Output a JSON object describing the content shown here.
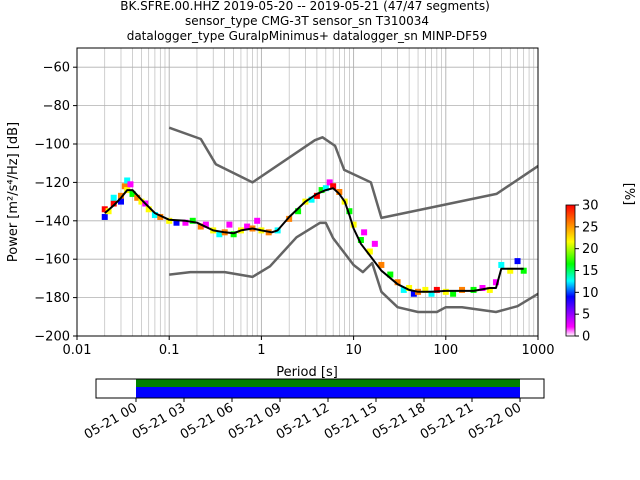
{
  "title_lines": [
    "BK.SFRE.00.HHZ   2019-05-20 -- 2019-05-21  (47/47 segments)",
    "sensor_type CMG-3T sensor_sn T310034",
    "datalogger_type GuralpMinimus+ datalogger_sn MINP-DF59"
  ],
  "colors": {
    "model": "#646464",
    "mode": "#000000",
    "grid": "#b0b0b0",
    "coverage_green": "#008000",
    "coverage_blue": "#0000ff"
  },
  "chart_data": [
    {
      "type": "heatmap",
      "title": "BK.SFRE.00.HHZ   2019-05-20 -- 2019-05-21  (47/47 segments)",
      "xlabel": "Period [s]",
      "ylabel": "Power [m²/s⁴/Hz] [dB]",
      "xscale": "log",
      "xlim": [
        0.01,
        1000
      ],
      "ylim": [
        -200,
        -50
      ],
      "x_tick_labels": [
        "0.01",
        "0.1",
        "1",
        "10",
        "100",
        "1000"
      ],
      "y_ticks": [
        -60,
        -80,
        -100,
        -120,
        -140,
        -160,
        -180,
        -200
      ],
      "grid": true,
      "colorbar": {
        "label": "[%]",
        "ticks": [
          0,
          5,
          10,
          15,
          20,
          25,
          30
        ],
        "range": [
          0,
          30
        ],
        "colormap": [
          "#ffffff",
          "#ff00ff",
          "#0000ff",
          "#00ffff",
          "#00ff00",
          "#ffff00",
          "#ff8000",
          "#ff0000"
        ]
      },
      "series": [
        {
          "kind": "noise_model_high",
          "x": [
            0.1,
            0.22,
            0.32,
            0.8,
            3.8,
            4.6,
            6.3,
            7.9,
            15.4,
            20,
            354.8,
            1000
          ],
          "y": [
            -91.5,
            -97.4,
            -110.5,
            -120,
            -98,
            -96.5,
            -101,
            -113.5,
            -120,
            -138.5,
            -126,
            -111.5
          ]
        },
        {
          "kind": "noise_model_low",
          "x": [
            0.1,
            0.17,
            0.4,
            0.8,
            1.24,
            2.4,
            4.3,
            5.0,
            6.0,
            10,
            12.6,
            15.9,
            20,
            30,
            50,
            80,
            100,
            150,
            350,
            600,
            1000
          ],
          "y": [
            -168,
            -166.7,
            -166.7,
            -169.2,
            -163.7,
            -148.6,
            -141.1,
            -141.1,
            -149,
            -163,
            -166.7,
            -162,
            -177,
            -185,
            -187.5,
            -187.5,
            -185,
            -185,
            -187.5,
            -184.5,
            -178
          ]
        },
        {
          "kind": "mode",
          "x": [
            0.02,
            0.025,
            0.03,
            0.035,
            0.04,
            0.05,
            0.07,
            0.1,
            0.15,
            0.2,
            0.3,
            0.4,
            0.5,
            0.6,
            0.8,
            1,
            1.3,
            1.5,
            2,
            3,
            4,
            5,
            6,
            7,
            8,
            9,
            10,
            12,
            15,
            20,
            30,
            40,
            50,
            70,
            100,
            150,
            200,
            300,
            350,
            400,
            500,
            700
          ],
          "y": [
            -136,
            -132,
            -128,
            -124,
            -124,
            -129,
            -136,
            -139.5,
            -140,
            -141,
            -145,
            -146,
            -146.5,
            -145,
            -144,
            -145,
            -146,
            -145,
            -138,
            -130,
            -126,
            -124,
            -123,
            -126,
            -130,
            -137,
            -144,
            -152,
            -158,
            -166,
            -173,
            -176,
            -177,
            -177,
            -176.5,
            -176.5,
            -176.5,
            -175,
            -175,
            -165,
            -165,
            -165
          ]
        },
        {
          "kind": "density",
          "cells": [
            {
              "x": 0.02,
              "y": -138,
              "v": 8
            },
            {
              "x": 0.02,
              "y": -134,
              "v": 28
            },
            {
              "x": 0.022,
              "y": -135,
              "v": 18
            },
            {
              "x": 0.025,
              "y": -131,
              "v": 26
            },
            {
              "x": 0.025,
              "y": -128,
              "v": 10
            },
            {
              "x": 0.03,
              "y": -127,
              "v": 22
            },
            {
              "x": 0.03,
              "y": -130,
              "v": 5
            },
            {
              "x": 0.033,
              "y": -122,
              "v": 25
            },
            {
              "x": 0.035,
              "y": -119,
              "v": 9
            },
            {
              "x": 0.035,
              "y": -124,
              "v": 20
            },
            {
              "x": 0.038,
              "y": -121,
              "v": 3
            },
            {
              "x": 0.04,
              "y": -126,
              "v": 16
            },
            {
              "x": 0.045,
              "y": -128,
              "v": 24
            },
            {
              "x": 0.05,
              "y": -130,
              "v": 18
            },
            {
              "x": 0.055,
              "y": -131,
              "v": 3
            },
            {
              "x": 0.06,
              "y": -134,
              "v": 20
            },
            {
              "x": 0.07,
              "y": -137,
              "v": 12
            },
            {
              "x": 0.08,
              "y": -138,
              "v": 22
            },
            {
              "x": 0.1,
              "y": -140,
              "v": 18
            },
            {
              "x": 0.12,
              "y": -141,
              "v": 6
            },
            {
              "x": 0.15,
              "y": -141,
              "v": 2
            },
            {
              "x": 0.18,
              "y": -140,
              "v": 14
            },
            {
              "x": 0.22,
              "y": -143,
              "v": 24
            },
            {
              "x": 0.25,
              "y": -142,
              "v": 2
            },
            {
              "x": 0.3,
              "y": -145,
              "v": 18
            },
            {
              "x": 0.35,
              "y": -147,
              "v": 12
            },
            {
              "x": 0.4,
              "y": -146,
              "v": 22
            },
            {
              "x": 0.45,
              "y": -142,
              "v": 1
            },
            {
              "x": 0.5,
              "y": -147,
              "v": 16
            },
            {
              "x": 0.6,
              "y": -145,
              "v": 20
            },
            {
              "x": 0.7,
              "y": -143,
              "v": 2
            },
            {
              "x": 0.8,
              "y": -144,
              "v": 24
            },
            {
              "x": 0.9,
              "y": -140,
              "v": 1
            },
            {
              "x": 1.0,
              "y": -145,
              "v": 18
            },
            {
              "x": 1.2,
              "y": -146,
              "v": 22
            },
            {
              "x": 1.5,
              "y": -145,
              "v": 10
            },
            {
              "x": 2.0,
              "y": -139,
              "v": 24
            },
            {
              "x": 2.5,
              "y": -135,
              "v": 16
            },
            {
              "x": 3.0,
              "y": -130,
              "v": 20
            },
            {
              "x": 3.5,
              "y": -129,
              "v": 9
            },
            {
              "x": 4.0,
              "y": -127,
              "v": 26
            },
            {
              "x": 4.5,
              "y": -124,
              "v": 14
            },
            {
              "x": 5.0,
              "y": -123,
              "v": 12
            },
            {
              "x": 5.5,
              "y": -120,
              "v": 3
            },
            {
              "x": 6.0,
              "y": -122,
              "v": 28
            },
            {
              "x": 7.0,
              "y": -125,
              "v": 22
            },
            {
              "x": 8.0,
              "y": -130,
              "v": 18
            },
            {
              "x": 9.0,
              "y": -135,
              "v": 14
            },
            {
              "x": 10.0,
              "y": -142,
              "v": 20
            },
            {
              "x": 12.0,
              "y": -150,
              "v": 16
            },
            {
              "x": 13.0,
              "y": -146,
              "v": 2
            },
            {
              "x": 15.0,
              "y": -156,
              "v": 20
            },
            {
              "x": 17.0,
              "y": -152,
              "v": 1
            },
            {
              "x": 20.0,
              "y": -163,
              "v": 22
            },
            {
              "x": 25.0,
              "y": -168,
              "v": 16
            },
            {
              "x": 30.0,
              "y": -172,
              "v": 24
            },
            {
              "x": 35.0,
              "y": -176,
              "v": 12
            },
            {
              "x": 40.0,
              "y": -175,
              "v": 20
            },
            {
              "x": 45.0,
              "y": -178,
              "v": 6
            },
            {
              "x": 50.0,
              "y": -177,
              "v": 22
            },
            {
              "x": 60.0,
              "y": -176,
              "v": 18
            },
            {
              "x": 70.0,
              "y": -178,
              "v": 10
            },
            {
              "x": 80.0,
              "y": -176,
              "v": 26
            },
            {
              "x": 100.0,
              "y": -177,
              "v": 20
            },
            {
              "x": 120.0,
              "y": -178,
              "v": 14
            },
            {
              "x": 150.0,
              "y": -176,
              "v": 22
            },
            {
              "x": 200.0,
              "y": -176,
              "v": 16
            },
            {
              "x": 250.0,
              "y": -175,
              "v": 2
            },
            {
              "x": 300.0,
              "y": -176,
              "v": 20
            },
            {
              "x": 350.0,
              "y": -172,
              "v": 4
            },
            {
              "x": 400.0,
              "y": -163,
              "v": 12
            },
            {
              "x": 500.0,
              "y": -166,
              "v": 20
            },
            {
              "x": 600.0,
              "y": -161,
              "v": 6
            },
            {
              "x": 700.0,
              "y": -166,
              "v": 14
            }
          ]
        }
      ]
    },
    {
      "type": "bar",
      "x_tick_labels": [
        "05-21 00",
        "05-21 03",
        "05-21 06",
        "05-21 09",
        "05-21 12",
        "05-21 15",
        "05-21 18",
        "05-21 21",
        "05-22 00"
      ],
      "xlim": [
        "2019-05-20 21:30",
        "2019-05-22 01:30"
      ],
      "series": [
        {
          "kind": "processed_segments",
          "start": "2019-05-21 00:00",
          "end": "2019-05-22 00:00"
        },
        {
          "kind": "data_coverage",
          "start": "2019-05-21 00:00",
          "end": "2019-05-22 00:00"
        }
      ]
    }
  ]
}
